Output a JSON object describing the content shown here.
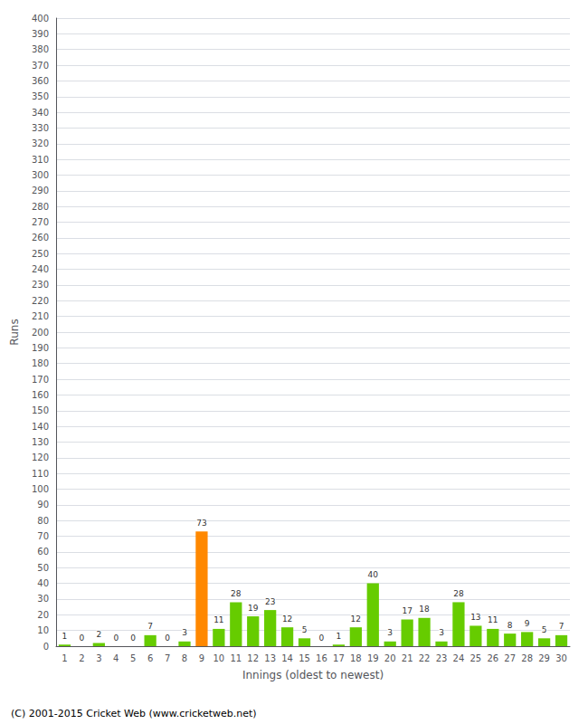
{
  "chart_data": {
    "type": "bar",
    "xlabel": "Innings (oldest to newest)",
    "ylabel": "Runs",
    "categories": [
      "1",
      "2",
      "3",
      "4",
      "5",
      "6",
      "7",
      "8",
      "9",
      "10",
      "11",
      "12",
      "13",
      "14",
      "15",
      "16",
      "17",
      "18",
      "19",
      "20",
      "21",
      "22",
      "23",
      "24",
      "25",
      "26",
      "27",
      "28",
      "29",
      "30"
    ],
    "values": [
      1,
      0,
      2,
      0,
      0,
      7,
      0,
      3,
      73,
      11,
      28,
      19,
      23,
      12,
      5,
      0,
      1,
      12,
      40,
      3,
      17,
      18,
      3,
      28,
      13,
      11,
      8,
      9,
      5,
      7
    ],
    "colors": [
      "#66cc00",
      "#66cc00",
      "#66cc00",
      "#66cc00",
      "#66cc00",
      "#66cc00",
      "#66cc00",
      "#66cc00",
      "#ff8800",
      "#66cc00",
      "#66cc00",
      "#66cc00",
      "#66cc00",
      "#66cc00",
      "#66cc00",
      "#66cc00",
      "#66cc00",
      "#66cc00",
      "#66cc00",
      "#66cc00",
      "#66cc00",
      "#66cc00",
      "#66cc00",
      "#66cc00",
      "#66cc00",
      "#66cc00",
      "#66cc00",
      "#66cc00",
      "#66cc00",
      "#66cc00"
    ],
    "ylim": [
      0,
      400
    ],
    "yticks": [
      0,
      10,
      20,
      30,
      40,
      50,
      60,
      70,
      80,
      90,
      100,
      110,
      120,
      130,
      140,
      150,
      160,
      170,
      180,
      190,
      200,
      210,
      220,
      230,
      240,
      250,
      260,
      270,
      280,
      290,
      300,
      310,
      320,
      330,
      340,
      350,
      360,
      370,
      380,
      390,
      400
    ],
    "grid": true,
    "data_labels": true,
    "annotations": [
      "(C) 2001-2015 Cricket Web (www.cricketweb.net)"
    ]
  }
}
